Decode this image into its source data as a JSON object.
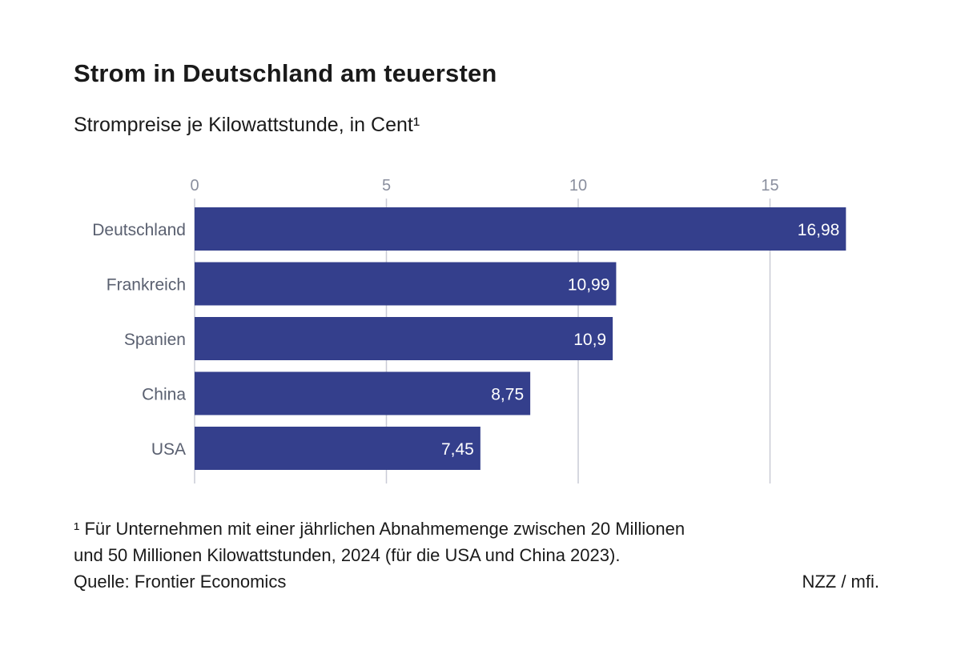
{
  "header": {
    "title": "Strom in Deutschland am teuersten",
    "subtitle": "Strompreise je Kilowattstunde, in Cent¹"
  },
  "chart_data": {
    "type": "bar",
    "orientation": "horizontal",
    "categories": [
      "Deutschland",
      "Frankreich",
      "Spanien",
      "China",
      "USA"
    ],
    "values": [
      16.98,
      10.99,
      10.9,
      8.75,
      7.45
    ],
    "value_labels": [
      "16,98",
      "10,99",
      "10,9",
      "8,75",
      "7,45"
    ],
    "xlim": [
      0,
      17.5
    ],
    "xticks": [
      0,
      5,
      10,
      15
    ],
    "xtick_labels": [
      "0",
      "5",
      "10",
      "15"
    ],
    "xaxis_position": "top",
    "grid": true,
    "colors": {
      "bar": "#343f8c",
      "grid": "#c9cbd6",
      "tick_text": "#8a8f9e",
      "category_text": "#5a6070",
      "value_text": "#ffffff"
    }
  },
  "footer": {
    "footnote_line1": "¹ Für Unternehmen mit einer jährlichen Abnahmemenge zwischen 20 Millionen",
    "footnote_line2": "und 50 Millionen Kilowattstunden, 2024 (für die USA und China 2023).",
    "source": "Quelle: Frontier Economics",
    "credit": "NZZ / mfi."
  }
}
